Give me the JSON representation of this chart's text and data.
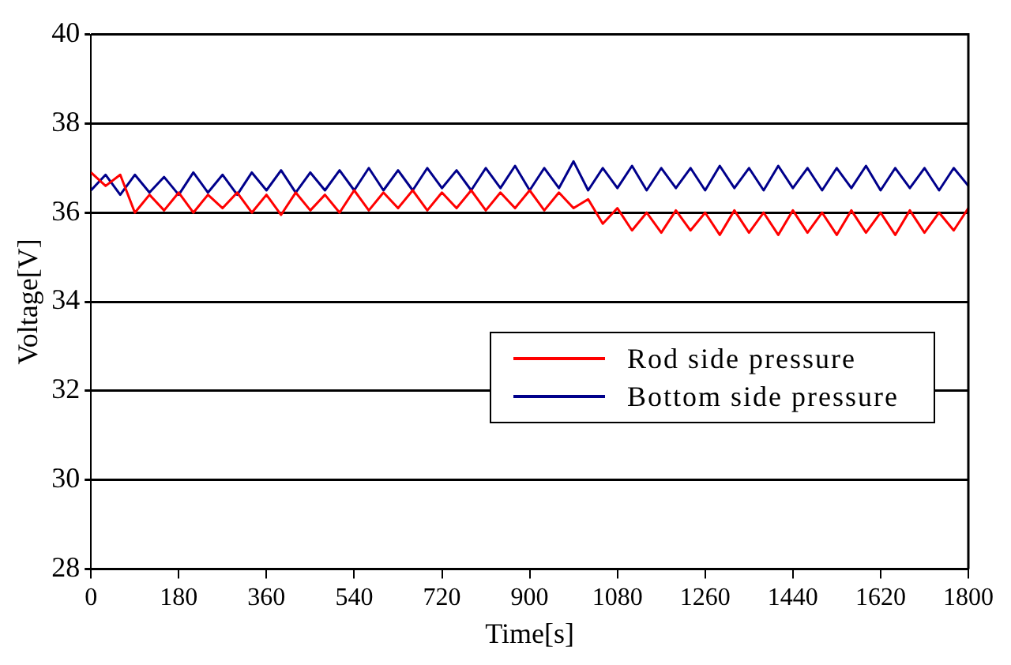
{
  "chart_data": {
    "type": "line",
    "xlabel": "Time[s]",
    "ylabel": "Voltage[V]",
    "x": [
      0,
      30,
      60,
      90,
      120,
      150,
      180,
      210,
      240,
      270,
      300,
      330,
      360,
      390,
      420,
      450,
      480,
      510,
      540,
      570,
      600,
      630,
      660,
      690,
      720,
      750,
      780,
      810,
      840,
      870,
      900,
      930,
      960,
      990,
      1020,
      1050,
      1080,
      1110,
      1140,
      1170,
      1200,
      1230,
      1260,
      1290,
      1320,
      1350,
      1380,
      1410,
      1440,
      1470,
      1500,
      1530,
      1560,
      1590,
      1620,
      1650,
      1680,
      1710,
      1740,
      1770,
      1800
    ],
    "series": [
      {
        "name": "Rod side pressure",
        "color": "#ff0000",
        "values": [
          36.9,
          36.6,
          36.85,
          36.0,
          36.4,
          36.05,
          36.45,
          36.0,
          36.4,
          36.1,
          36.45,
          36.0,
          36.4,
          35.95,
          36.45,
          36.05,
          36.4,
          36.0,
          36.5,
          36.05,
          36.45,
          36.1,
          36.5,
          36.05,
          36.45,
          36.1,
          36.5,
          36.05,
          36.45,
          36.1,
          36.5,
          36.05,
          36.45,
          36.1,
          36.3,
          35.75,
          36.1,
          35.6,
          36.0,
          35.55,
          36.05,
          35.6,
          36.0,
          35.5,
          36.05,
          35.55,
          36.0,
          35.5,
          36.05,
          35.55,
          36.0,
          35.5,
          36.05,
          35.55,
          36.0,
          35.5,
          36.05,
          35.55,
          36.0,
          35.6,
          36.1
        ]
      },
      {
        "name": "Bottom side pressure",
        "color": "#00008b",
        "values": [
          36.5,
          36.85,
          36.4,
          36.85,
          36.45,
          36.8,
          36.4,
          36.9,
          36.45,
          36.85,
          36.4,
          36.9,
          36.5,
          36.95,
          36.45,
          36.9,
          36.5,
          36.95,
          36.5,
          37.0,
          36.5,
          36.95,
          36.5,
          37.0,
          36.55,
          36.95,
          36.5,
          37.0,
          36.55,
          37.05,
          36.5,
          37.0,
          36.55,
          37.15,
          36.5,
          37.0,
          36.55,
          37.05,
          36.5,
          37.0,
          36.55,
          37.0,
          36.5,
          37.05,
          36.55,
          37.0,
          36.5,
          37.05,
          36.55,
          37.0,
          36.5,
          37.0,
          36.55,
          37.05,
          36.5,
          37.0,
          36.55,
          37.0,
          36.5,
          37.0,
          36.6
        ]
      }
    ],
    "xlim": [
      0,
      1800
    ],
    "xticks": [
      0,
      180,
      360,
      540,
      720,
      900,
      1080,
      1260,
      1440,
      1620,
      1800
    ],
    "ylim": [
      28,
      40
    ],
    "yticks": [
      28,
      30,
      32,
      34,
      36,
      38,
      40
    ],
    "grid": "y",
    "legend": "bottom right",
    "marker": "none",
    "line_style": "solid"
  }
}
